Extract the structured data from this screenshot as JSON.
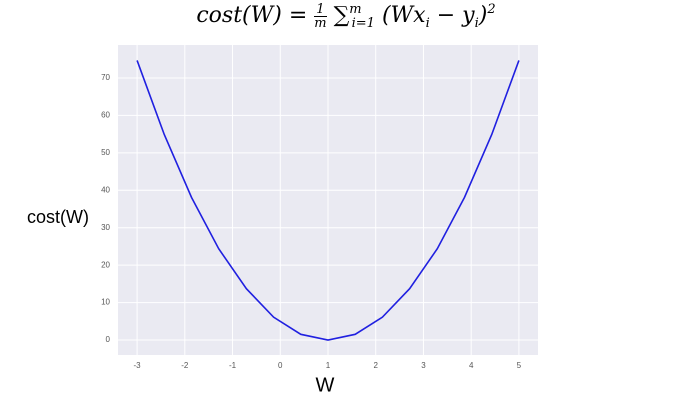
{
  "chart_data": {
    "type": "line",
    "title": {
      "lhs": "cost(W) =",
      "frac_num": "1",
      "frac_den": "m",
      "sum": "∑",
      "sum_upper": "m",
      "sum_lower": "i=1",
      "term": "(Wx",
      "term_sub": "i",
      "minus": "− y",
      "minus_sub": "i",
      "close": ")",
      "power": "2"
    },
    "xlabel": "W",
    "ylabel": "cost(W)",
    "x": [
      -3,
      -2.43,
      -1.86,
      -1.29,
      -0.71,
      -0.14,
      0.43,
      1,
      1.57,
      2.14,
      2.71,
      3.29,
      3.86,
      4.43,
      5
    ],
    "series": [
      {
        "color": "#2020e0",
        "values": [
          74.67,
          54.86,
          38.1,
          24.38,
          13.71,
          6.1,
          1.52,
          0,
          1.52,
          6.1,
          13.71,
          24.38,
          38.1,
          54.86,
          74.67
        ]
      }
    ],
    "xlim": [
      -3.4,
      5.4
    ],
    "xticks": [
      -3,
      -2,
      -1,
      0,
      1,
      2,
      3,
      4,
      5
    ],
    "ylim": [
      -4,
      78.8
    ],
    "yticks": [
      0,
      10,
      20,
      30,
      40,
      50,
      60,
      70
    ],
    "grid": true
  }
}
